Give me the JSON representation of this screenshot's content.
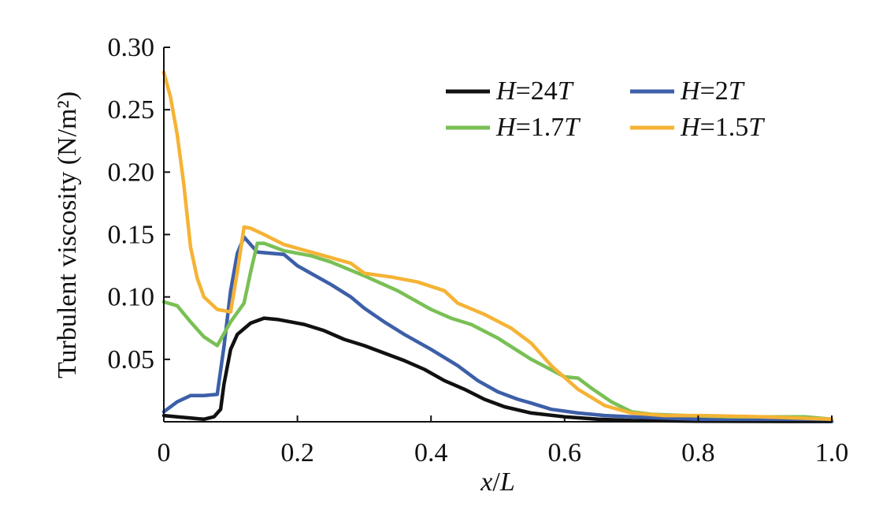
{
  "chart_data": {
    "type": "line",
    "title": "",
    "xlabel": "x/L",
    "ylabel": "Turbulent viscosity (N/m²)",
    "xlim": [
      0,
      1.0
    ],
    "ylim": [
      0,
      0.3
    ],
    "xticks": [
      "0",
      "0.2",
      "0.4",
      "0.6",
      "0.8",
      "1.0"
    ],
    "yticks": [
      "0.05",
      "0.10",
      "0.15",
      "0.20",
      "0.25",
      "0.30"
    ],
    "grid": false,
    "legend_position": "top-right",
    "series": [
      {
        "name": "H=24T",
        "label_var": "H",
        "label_val": "24T",
        "color": "#111111",
        "x": [
          0,
          0.02,
          0.04,
          0.06,
          0.075,
          0.085,
          0.09,
          0.1,
          0.11,
          0.13,
          0.15,
          0.17,
          0.19,
          0.21,
          0.24,
          0.27,
          0.3,
          0.33,
          0.36,
          0.39,
          0.42,
          0.45,
          0.48,
          0.51,
          0.55,
          0.6,
          0.65,
          0.7,
          0.8,
          0.9,
          1.0
        ],
        "y": [
          0.005,
          0.004,
          0.003,
          0.002,
          0.004,
          0.01,
          0.03,
          0.058,
          0.07,
          0.079,
          0.083,
          0.082,
          0.08,
          0.078,
          0.073,
          0.066,
          0.061,
          0.055,
          0.049,
          0.042,
          0.033,
          0.026,
          0.018,
          0.012,
          0.007,
          0.004,
          0.002,
          0.001,
          0.0005,
          0.0003,
          0.0002
        ]
      },
      {
        "name": "H=2T",
        "label_var": "H",
        "label_val": "2T",
        "color": "#3d5fa8",
        "x": [
          0,
          0.02,
          0.04,
          0.06,
          0.08,
          0.09,
          0.1,
          0.11,
          0.12,
          0.13,
          0.14,
          0.16,
          0.18,
          0.2,
          0.22,
          0.25,
          0.28,
          0.3,
          0.33,
          0.36,
          0.4,
          0.44,
          0.47,
          0.5,
          0.53,
          0.55,
          0.58,
          0.62,
          0.66,
          0.7,
          0.75,
          0.8,
          0.9,
          1.0
        ],
        "y": [
          0.008,
          0.016,
          0.021,
          0.021,
          0.022,
          0.06,
          0.105,
          0.135,
          0.148,
          0.142,
          0.136,
          0.135,
          0.134,
          0.125,
          0.119,
          0.11,
          0.1,
          0.091,
          0.08,
          0.07,
          0.058,
          0.045,
          0.033,
          0.024,
          0.018,
          0.015,
          0.01,
          0.007,
          0.005,
          0.004,
          0.003,
          0.002,
          0.001,
          0.0005
        ]
      },
      {
        "name": "H=1.7T",
        "label_var": "H",
        "label_val": "1.7T",
        "color": "#79c055",
        "x": [
          0,
          0.02,
          0.04,
          0.06,
          0.08,
          0.1,
          0.12,
          0.13,
          0.14,
          0.15,
          0.18,
          0.22,
          0.25,
          0.3,
          0.35,
          0.4,
          0.43,
          0.46,
          0.5,
          0.55,
          0.6,
          0.62,
          0.64,
          0.67,
          0.7,
          0.73,
          0.78,
          0.85,
          0.9,
          0.96,
          1.0
        ],
        "y": [
          0.096,
          0.093,
          0.08,
          0.068,
          0.061,
          0.08,
          0.095,
          0.12,
          0.143,
          0.143,
          0.137,
          0.133,
          0.128,
          0.117,
          0.105,
          0.09,
          0.083,
          0.078,
          0.067,
          0.05,
          0.036,
          0.035,
          0.027,
          0.016,
          0.008,
          0.006,
          0.005,
          0.004,
          0.004,
          0.004,
          0.002
        ]
      },
      {
        "name": "H=1.5T",
        "label_var": "H",
        "label_val": "1.5T",
        "color": "#f5b335",
        "x": [
          0,
          0.01,
          0.02,
          0.03,
          0.04,
          0.05,
          0.06,
          0.08,
          0.1,
          0.11,
          0.12,
          0.13,
          0.15,
          0.18,
          0.22,
          0.26,
          0.28,
          0.3,
          0.34,
          0.38,
          0.42,
          0.44,
          0.48,
          0.52,
          0.55,
          0.58,
          0.62,
          0.66,
          0.7,
          0.75,
          0.8,
          0.9,
          1.0
        ],
        "y": [
          0.28,
          0.26,
          0.23,
          0.19,
          0.14,
          0.115,
          0.1,
          0.09,
          0.088,
          0.12,
          0.156,
          0.155,
          0.15,
          0.142,
          0.136,
          0.13,
          0.127,
          0.119,
          0.116,
          0.112,
          0.105,
          0.095,
          0.086,
          0.075,
          0.063,
          0.045,
          0.026,
          0.013,
          0.007,
          0.005,
          0.005,
          0.004,
          0.002
        ]
      }
    ]
  }
}
